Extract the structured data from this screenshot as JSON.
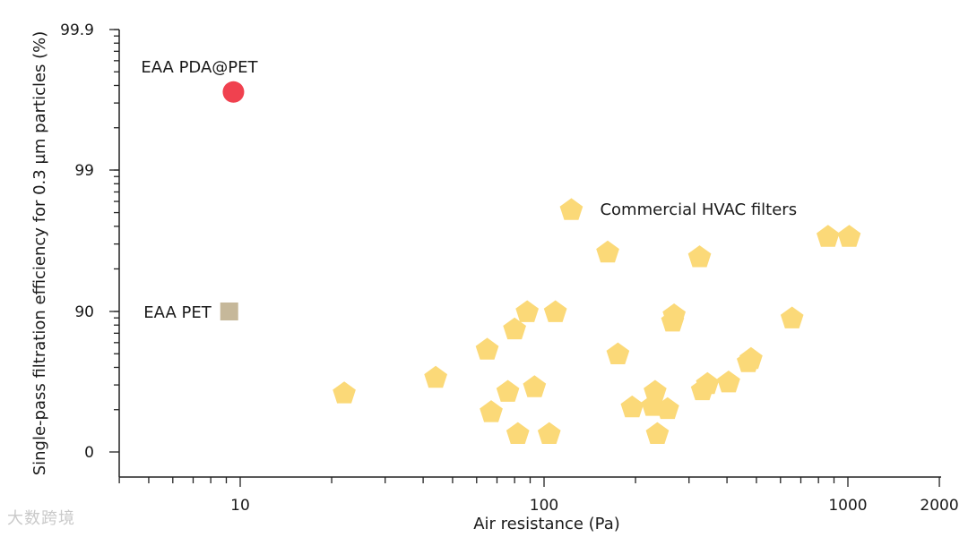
{
  "chart_data": {
    "type": "scatter",
    "xlabel": "Air resistance (Pa)",
    "ylabel": "Single-pass filtration efficiency for 0.3 µm particles (%)",
    "x_scale": "log",
    "xlim": [
      4,
      2000
    ],
    "x_ticks": [
      {
        "value": 10,
        "label": "10"
      },
      {
        "value": 100,
        "label": "100"
      },
      {
        "value": 1000,
        "label": "1000"
      },
      {
        "value": 2000,
        "label": "2000"
      }
    ],
    "y_ticks": [
      {
        "value": 0,
        "label": "0"
      },
      {
        "value": 90,
        "label": "90"
      },
      {
        "value": 99,
        "label": "99"
      },
      {
        "value": 99.9,
        "label": "99.9"
      }
    ],
    "series": [
      {
        "name": "EAA PDA@PET",
        "marker": "circle",
        "color": "#f0414f",
        "points": [
          {
            "x": 9.5,
            "y": 99.5
          }
        ]
      },
      {
        "name": "EAA PET",
        "marker": "square",
        "color": "#c6b89a",
        "points": [
          {
            "x": 9.2,
            "y": 90
          }
        ]
      },
      {
        "name": "Commercial HVAC filters",
        "marker": "pentagon",
        "color": "#fbd978",
        "points": [
          {
            "x": 22,
            "y": 38
          },
          {
            "x": 44,
            "y": 48
          },
          {
            "x": 65,
            "y": 66
          },
          {
            "x": 67,
            "y": 26
          },
          {
            "x": 76,
            "y": 39
          },
          {
            "x": 80,
            "y": 79
          },
          {
            "x": 82,
            "y": 12
          },
          {
            "x": 88,
            "y": 90
          },
          {
            "x": 93,
            "y": 42
          },
          {
            "x": 104,
            "y": 12
          },
          {
            "x": 109,
            "y": 90
          },
          {
            "x": 123,
            "y": 96.5
          },
          {
            "x": 162,
            "y": 93.8
          },
          {
            "x": 175,
            "y": 63
          },
          {
            "x": 195,
            "y": 29
          },
          {
            "x": 228,
            "y": 30
          },
          {
            "x": 232,
            "y": 39
          },
          {
            "x": 236,
            "y": 12
          },
          {
            "x": 255,
            "y": 28
          },
          {
            "x": 265,
            "y": 84
          },
          {
            "x": 268,
            "y": 88
          },
          {
            "x": 325,
            "y": 93.5
          },
          {
            "x": 332,
            "y": 40
          },
          {
            "x": 345,
            "y": 44
          },
          {
            "x": 405,
            "y": 45
          },
          {
            "x": 470,
            "y": 58
          },
          {
            "x": 480,
            "y": 60
          },
          {
            "x": 655,
            "y": 86
          },
          {
            "x": 860,
            "y": 94.8
          },
          {
            "x": 1010,
            "y": 94.8
          }
        ]
      }
    ],
    "annotations": [
      {
        "text": "EAA PDA@PET",
        "anchor": "above-left"
      },
      {
        "text": "EAA PET",
        "anchor": "left"
      },
      {
        "text": "Commercial HVAC filters",
        "anchor": "right"
      }
    ],
    "grid": false,
    "legend": "none"
  },
  "watermark": "大数跨境"
}
